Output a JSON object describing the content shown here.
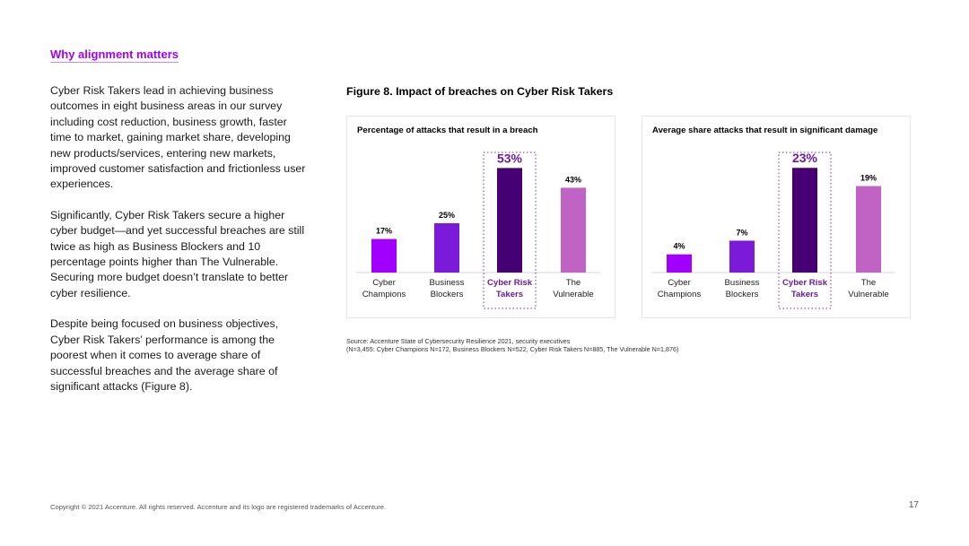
{
  "section_heading": "Why alignment matters",
  "paragraphs": [
    "Cyber Risk Takers lead in achieving business outcomes in eight business areas in our survey including cost reduction, business growth, faster time to market, gaining market share, developing new products/services, entering new markets, improved customer satisfaction and frictionless user experiences.",
    "Significantly, Cyber Risk Takers secure a higher cyber budget—and yet successful breaches are still twice as high as Business Blockers and 10 percentage points higher than The Vulnerable. Securing more budget doesn’t translate to better cyber resilience.",
    "Despite being focused on business objectives, Cyber Risk Takers’ performance is among the poorest when it comes to average share of successful breaches and the average share of significant attacks (Figure 8)."
  ],
  "figure_title": "Figure 8. Impact of breaches on Cyber Risk Takers",
  "colors": {
    "accent": "#a100ff",
    "bar_colors": [
      "#a100ff",
      "#7b1ad8",
      "#460073",
      "#c063c4"
    ],
    "highlight_outline": "#7b2ab8",
    "highlight_label": "#6a1aa8"
  },
  "chart_data": [
    {
      "type": "bar",
      "title": "Percentage of attacks that result in a breach",
      "categories": [
        "Cyber Champions",
        "Business Blockers",
        "Cyber Risk Takers",
        "The Vulnerable"
      ],
      "category_lines": [
        [
          "Cyber",
          "Champions"
        ],
        [
          "Business",
          "Blockers"
        ],
        [
          "Cyber Risk",
          "Takers"
        ],
        [
          "The",
          "Vulnerable"
        ]
      ],
      "values": [
        17,
        25,
        53,
        43
      ],
      "value_labels": [
        "17%",
        "25%",
        "53%",
        "43%"
      ],
      "highlight_index": 2,
      "xlabel": "",
      "ylabel": "",
      "ylim": [
        0,
        60
      ],
      "grid": false
    },
    {
      "type": "bar",
      "title": "Average share attacks that result in significant damage",
      "categories": [
        "Cyber Champions",
        "Business Blockers",
        "Cyber Risk Takers",
        "The Vulnerable"
      ],
      "category_lines": [
        [
          "Cyber",
          "Champions"
        ],
        [
          "Business",
          "Blockers"
        ],
        [
          "Cyber Risk",
          "Takers"
        ],
        [
          "The",
          "Vulnerable"
        ]
      ],
      "values": [
        4,
        7,
        23,
        19
      ],
      "value_labels": [
        "4%",
        "7%",
        "23%",
        "19%"
      ],
      "highlight_index": 2,
      "xlabel": "",
      "ylabel": "",
      "ylim": [
        0,
        26
      ],
      "grid": false
    }
  ],
  "source_lines": [
    "Source: Accenture State of Cybersecurity Resilience 2021, security executives",
    "(N=3,455: Cyber Champions N=172, Business Blockers N=522, Cyber Risk Takers N=885, The Vulnerable N=1,876)"
  ],
  "footer": "Copyright © 2021 Accenture. All rights reserved. Accenture and its logo are registered trademarks of Accenture.",
  "page_number": "17"
}
